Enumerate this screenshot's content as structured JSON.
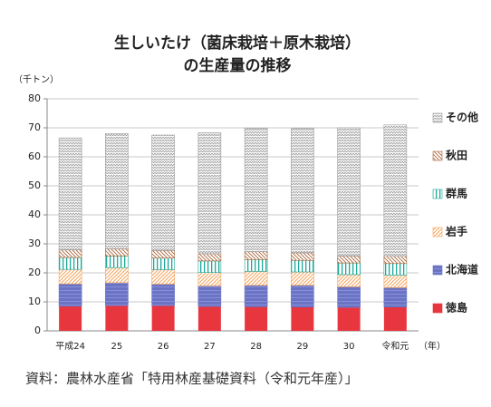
{
  "chart_data": {
    "type": "stacked_bar",
    "title": [
      "生しいたけ（菌床栽培＋原木栽培）",
      "の生産量の推移"
    ],
    "y_axis_label": "（千トン）",
    "x_axis_label": "（年）",
    "source": "資料：農林水産省「特用林産基礎資料（令和元年産）」",
    "categories": [
      "平成24",
      "25",
      "26",
      "27",
      "28",
      "29",
      "30",
      "令和元"
    ],
    "series": [
      {
        "name": "徳島",
        "color": "#e8363f",
        "values": [
          8.5,
          8.7,
          8.7,
          8.4,
          8.3,
          8.2,
          8.1,
          8.2
        ]
      },
      {
        "name": "北海道",
        "color": "#6a73c4",
        "values": [
          7.7,
          7.9,
          7.4,
          7.1,
          7.4,
          7.5,
          7.1,
          6.7
        ]
      },
      {
        "name": "岩手",
        "color": "#f4a45c",
        "values": [
          5.0,
          5.2,
          5.0,
          4.6,
          4.8,
          4.6,
          4.2,
          4.3
        ]
      },
      {
        "name": "群馬",
        "color": "#1fa89a",
        "values": [
          4.1,
          4.0,
          4.0,
          4.0,
          4.1,
          4.0,
          4.0,
          4.0
        ]
      },
      {
        "name": "秋田",
        "color": "#a8653a",
        "values": [
          2.6,
          2.5,
          2.6,
          2.5,
          2.7,
          2.6,
          2.4,
          2.5
        ]
      },
      {
        "name": "その他",
        "color": "#9a9a9a",
        "values": [
          38.6,
          39.7,
          39.8,
          41.7,
          42.5,
          42.9,
          44.2,
          45.3
        ]
      }
    ],
    "ylim": [
      0,
      80
    ],
    "yticks": [
      0,
      10,
      20,
      30,
      40,
      50,
      60,
      70,
      80
    ],
    "grid": true,
    "legend": "right"
  }
}
